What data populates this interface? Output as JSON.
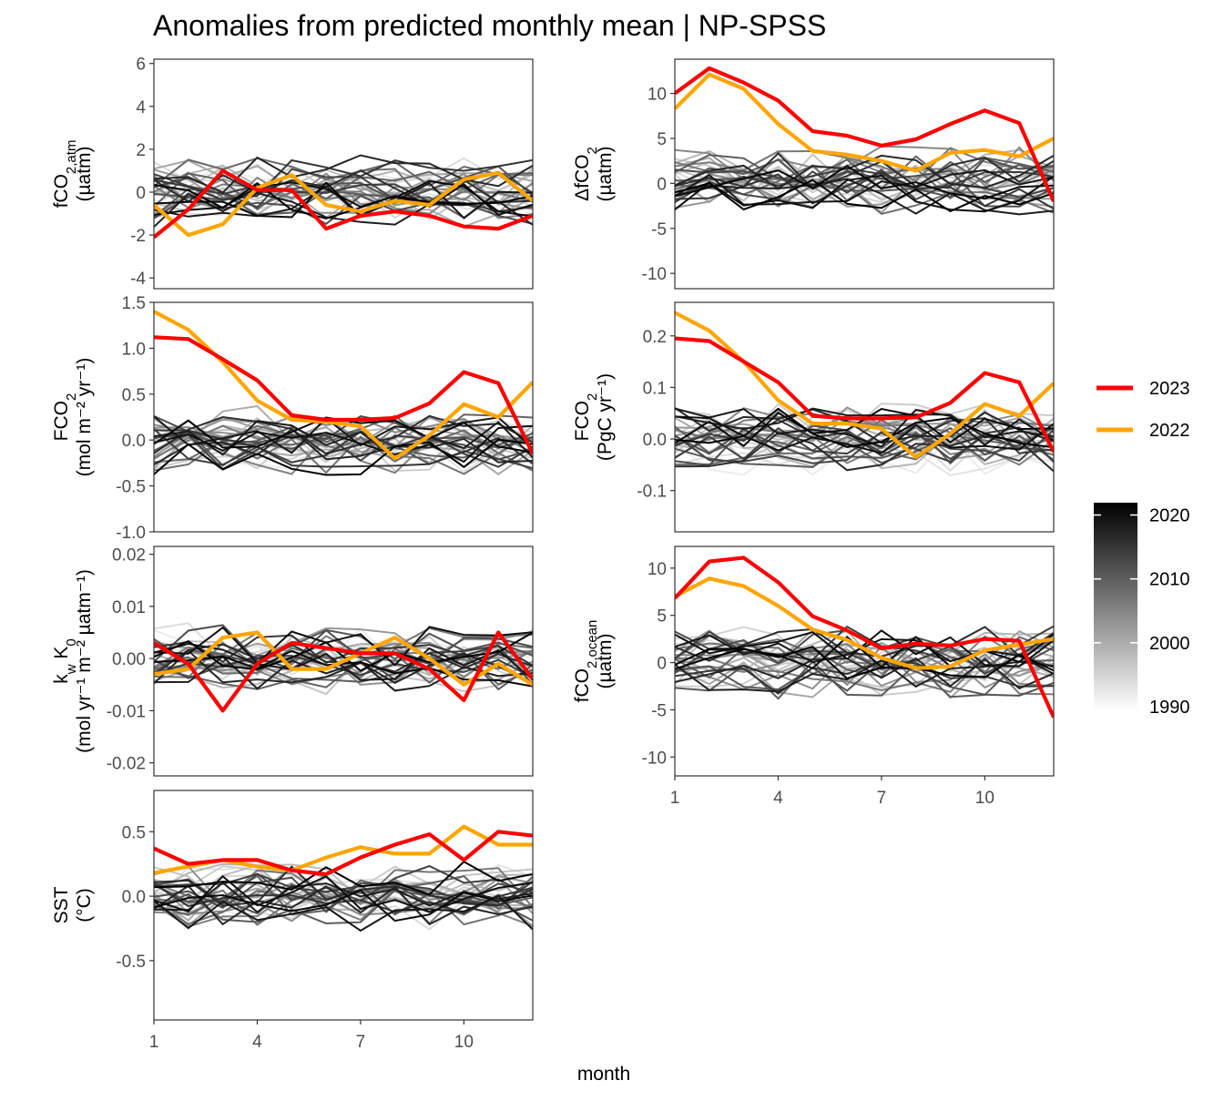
{
  "chart_data": {
    "type": "line",
    "title": "Anomalies from predicted monthly mean | NP-SPSS",
    "xlabel": "month",
    "x": [
      1,
      2,
      3,
      4,
      5,
      6,
      7,
      8,
      9,
      10,
      11,
      12
    ],
    "x_ticks": [
      "1",
      "4",
      "7",
      "10"
    ],
    "legend": {
      "highlight": [
        {
          "name": "2023",
          "color": "#ff0000"
        },
        {
          "name": "2022",
          "color": "#ffa500"
        }
      ],
      "year_scale": {
        "ticks": [
          "2020",
          "2010",
          "2000",
          "1990"
        ],
        "low_color": "#ebebeb",
        "high_color": "#000000",
        "range": [
          1990,
          2021
        ]
      }
    },
    "panels": [
      {
        "id": "fco2atm",
        "ylabel_main": "fCO",
        "ylabel_sub": "2,atm",
        "ylabel_unit": "(µatm)",
        "ylim": [
          -4.5,
          6.2
        ],
        "yticks": [
          6,
          4,
          2,
          0,
          -2,
          -4
        ],
        "ytick_labels": [
          "6",
          "4",
          "2",
          "0",
          "-2",
          "-4"
        ],
        "series": [
          {
            "name": "2023",
            "values": [
              -2.1,
              -0.8,
              1.0,
              0.1,
              0.1,
              -1.7,
              -1.1,
              -0.9,
              -1.1,
              -1.6,
              -1.7,
              -1.1
            ]
          },
          {
            "name": "2022",
            "values": [
              -0.6,
              -2.0,
              -1.5,
              0.2,
              0.8,
              -0.6,
              -0.9,
              -0.4,
              -0.6,
              0.6,
              0.9,
              -0.4
            ]
          }
        ]
      },
      {
        "id": "dfco2",
        "ylabel_main": "ΔfCO",
        "ylabel_sub": "2",
        "ylabel_unit": "(µatm)",
        "ylim": [
          -11.7,
          13.8
        ],
        "yticks": [
          10,
          5,
          0,
          -5,
          -10
        ],
        "ytick_labels": [
          "10",
          "5",
          "0",
          "-5",
          "-10"
        ],
        "series": [
          {
            "name": "2023",
            "values": [
              10.0,
              12.8,
              11.2,
              9.2,
              5.8,
              5.3,
              4.2,
              4.9,
              6.6,
              8.1,
              6.7,
              -2.0
            ]
          },
          {
            "name": "2022",
            "values": [
              8.3,
              12.1,
              10.5,
              6.6,
              3.6,
              3.2,
              2.5,
              1.4,
              3.4,
              3.7,
              3.0,
              5.0
            ]
          }
        ]
      },
      {
        "id": "fco2flux",
        "ylabel_main": "FCO",
        "ylabel_sub": "2",
        "ylabel_unit": "(mol m⁻² yr⁻¹)",
        "ylim": [
          -1.0,
          1.5
        ],
        "yticks": [
          1.5,
          1.0,
          0.5,
          0.0,
          -0.5,
          -1.0
        ],
        "ytick_labels": [
          "1.5",
          "1.0",
          "0.5",
          "0.0",
          "-0.5",
          "-1.0"
        ],
        "series": [
          {
            "name": "2023",
            "values": [
              1.12,
              1.1,
              0.88,
              0.65,
              0.27,
              0.22,
              0.22,
              0.24,
              0.4,
              0.74,
              0.62,
              -0.15
            ]
          },
          {
            "name": "2022",
            "values": [
              1.4,
              1.2,
              0.85,
              0.43,
              0.22,
              0.2,
              0.15,
              -0.2,
              0.05,
              0.39,
              0.25,
              0.63
            ]
          }
        ]
      },
      {
        "id": "fco2int",
        "ylabel_main": "FCO",
        "ylabel_sub": "2",
        "ylabel_unit": "(PgC yr⁻¹)",
        "ylim": [
          -0.18,
          0.265
        ],
        "yticks": [
          0.2,
          0.1,
          0.0,
          -0.1
        ],
        "ytick_labels": [
          "0.2",
          "0.1",
          "0.0",
          "-0.1"
        ],
        "series": [
          {
            "name": "2023",
            "values": [
              0.195,
              0.19,
              0.15,
              0.11,
              0.045,
              0.04,
              0.04,
              0.042,
              0.07,
              0.128,
              0.11,
              -0.025
            ]
          },
          {
            "name": "2022",
            "values": [
              0.245,
              0.21,
              0.15,
              0.075,
              0.03,
              0.03,
              0.02,
              -0.035,
              0.01,
              0.068,
              0.045,
              0.108
            ]
          }
        ]
      },
      {
        "id": "kw",
        "ylabel_main": "k",
        "ylabel_sub": "w",
        "ylabel_extra": " K",
        "ylabel_sub2": "0",
        "ylabel_unit": "(mol yr⁻¹ m⁻² µatm⁻¹)",
        "ylim": [
          -0.0225,
          0.0215
        ],
        "yticks": [
          0.02,
          0.01,
          0.0,
          -0.01,
          -0.02
        ],
        "ytick_labels": [
          "0.02",
          "0.01",
          "0.00",
          "-0.01",
          "-0.02"
        ],
        "series": [
          {
            "name": "2023",
            "values": [
              0.003,
              -0.001,
              -0.01,
              -0.001,
              0.003,
              0.002,
              0.001,
              0.001,
              -0.002,
              -0.008,
              0.005,
              -0.004
            ]
          },
          {
            "name": "2022",
            "values": [
              -0.003,
              -0.002,
              0.004,
              0.005,
              -0.002,
              -0.002,
              0.001,
              0.004,
              0.0,
              -0.005,
              -0.001,
              -0.005
            ]
          }
        ]
      },
      {
        "id": "fco2ocean",
        "ylabel_main": "fCO",
        "ylabel_sub": "2,ocean",
        "ylabel_unit": "(µatm)",
        "ylim": [
          -12.0,
          12.3
        ],
        "yticks": [
          10,
          5,
          0,
          -5,
          -10
        ],
        "ytick_labels": [
          "10",
          "5",
          "0",
          "-5",
          "-10"
        ],
        "series": [
          {
            "name": "2023",
            "values": [
              6.8,
              10.7,
              11.1,
              8.5,
              4.9,
              3.4,
              1.5,
              2.0,
              1.8,
              2.5,
              2.3,
              -5.8
            ]
          },
          {
            "name": "2022",
            "values": [
              7.0,
              8.9,
              8.1,
              6.0,
              3.5,
              2.4,
              0.5,
              -0.6,
              -0.4,
              1.3,
              1.9,
              2.5
            ]
          }
        ]
      },
      {
        "id": "sst",
        "ylabel_main": "SST",
        "ylabel_unit": "(°C)",
        "ylim": [
          -0.96,
          0.82
        ],
        "yticks": [
          0.5,
          0.0,
          -0.5
        ],
        "ytick_labels": [
          "0.5",
          "0.0",
          "-0.5"
        ],
        "series": [
          {
            "name": "2023",
            "values": [
              0.37,
              0.25,
              0.28,
              0.28,
              0.2,
              0.17,
              0.3,
              0.4,
              0.48,
              0.28,
              0.5,
              0.47
            ]
          },
          {
            "name": "2022",
            "values": [
              0.18,
              0.23,
              0.28,
              0.23,
              0.2,
              0.3,
              0.38,
              0.33,
              0.33,
              0.54,
              0.4,
              0.4
            ]
          }
        ]
      }
    ],
    "background_years": {
      "range": [
        1990,
        2021
      ],
      "note_on_values": "one thin line per year, colored on the year scale"
    }
  }
}
